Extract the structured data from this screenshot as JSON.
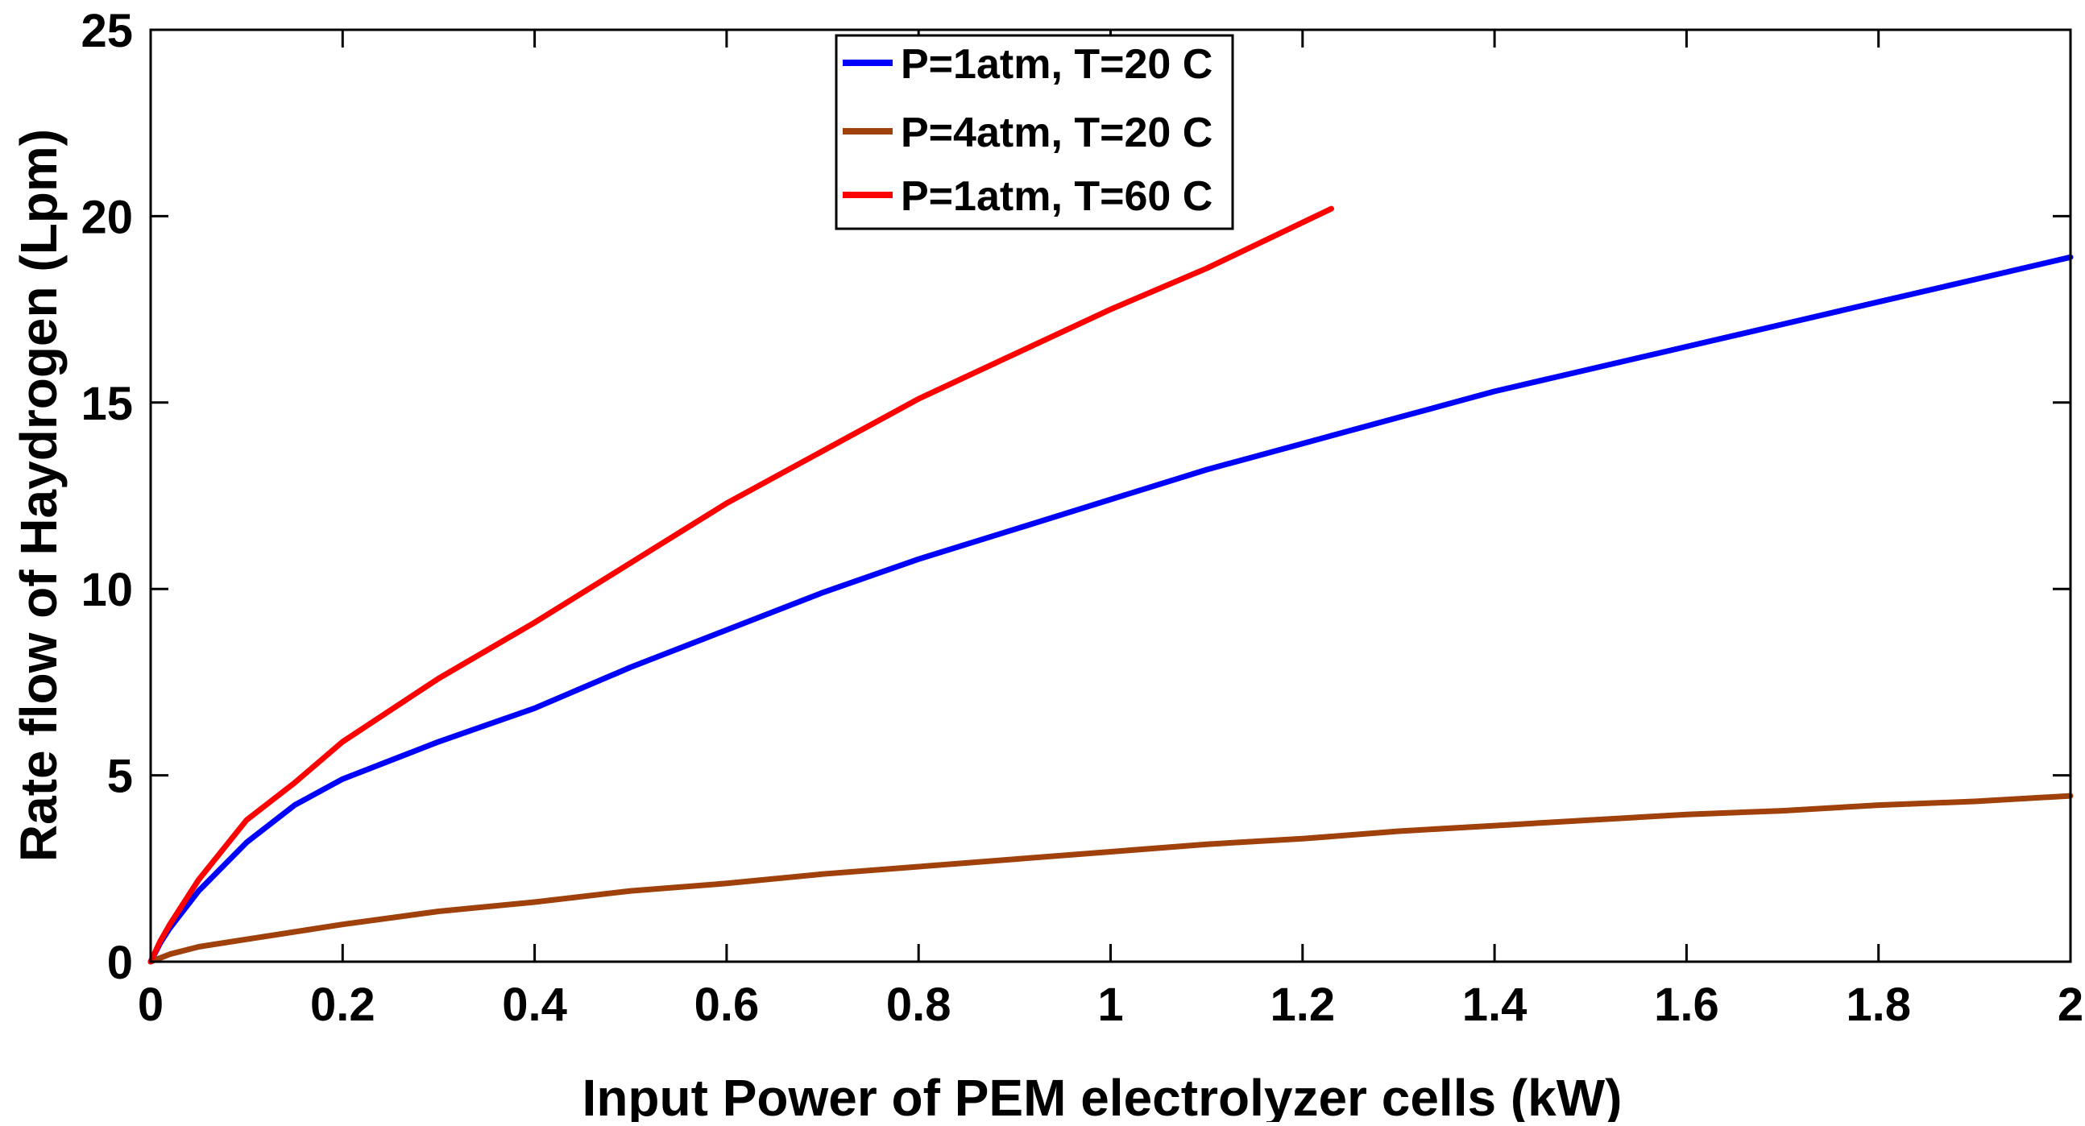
{
  "chart_data": {
    "type": "line",
    "title": "",
    "xlabel": "Input Power of PEM electrolyzer cells (kW)",
    "ylabel": "Rate flow of Haydrogen (Lpm)",
    "xlim": [
      0,
      2
    ],
    "ylim": [
      0,
      25
    ],
    "xticks": [
      0,
      0.2,
      0.4,
      0.6,
      0.8,
      1,
      1.2,
      1.4,
      1.6,
      1.8,
      2
    ],
    "xtick_labels": [
      "0",
      "0.2",
      "0.4",
      "0.6",
      "0.8",
      "1",
      "1.2",
      "1.4",
      "1.6",
      "1.8",
      "2"
    ],
    "yticks": [
      0,
      5,
      10,
      15,
      20,
      25
    ],
    "ytick_labels": [
      "0",
      "5",
      "10",
      "15",
      "20",
      "25"
    ],
    "grid": false,
    "legend_position": "top-center",
    "series": [
      {
        "name": "P=1atm, T=20 C",
        "color": "#0000ff",
        "x": [
          0,
          0.01,
          0.02,
          0.05,
          0.1,
          0.15,
          0.2,
          0.3,
          0.4,
          0.5,
          0.6,
          0.7,
          0.8,
          0.9,
          1.0,
          1.1,
          1.2,
          1.3,
          1.4,
          1.5,
          1.6,
          1.7,
          1.8,
          1.9,
          2.0
        ],
        "y": [
          0,
          0.5,
          0.9,
          1.9,
          3.2,
          4.2,
          4.9,
          5.9,
          6.8,
          7.9,
          8.9,
          9.9,
          10.8,
          11.6,
          12.4,
          13.2,
          13.9,
          14.6,
          15.3,
          15.9,
          16.5,
          17.1,
          17.7,
          18.3,
          18.9
        ]
      },
      {
        "name": "P=4atm, T=20 C",
        "color": "#a0400a",
        "x": [
          0,
          0.02,
          0.05,
          0.1,
          0.2,
          0.3,
          0.4,
          0.5,
          0.6,
          0.7,
          0.8,
          0.9,
          1.0,
          1.1,
          1.2,
          1.3,
          1.4,
          1.5,
          1.6,
          1.7,
          1.8,
          1.9,
          2.0
        ],
        "y": [
          0,
          0.2,
          0.4,
          0.6,
          1.0,
          1.35,
          1.6,
          1.9,
          2.1,
          2.35,
          2.55,
          2.75,
          2.95,
          3.15,
          3.3,
          3.5,
          3.65,
          3.8,
          3.95,
          4.05,
          4.2,
          4.3,
          4.45
        ]
      },
      {
        "name": "P=1atm, T=60 C",
        "color": "#ff0000",
        "x": [
          0,
          0.01,
          0.02,
          0.05,
          0.1,
          0.15,
          0.2,
          0.3,
          0.4,
          0.5,
          0.6,
          0.7,
          0.8,
          0.9,
          1.0,
          1.1,
          1.23
        ],
        "y": [
          0,
          0.55,
          1.0,
          2.2,
          3.8,
          4.8,
          5.9,
          7.6,
          9.1,
          10.7,
          12.3,
          13.7,
          15.1,
          16.3,
          17.5,
          18.6,
          20.2
        ]
      }
    ]
  }
}
